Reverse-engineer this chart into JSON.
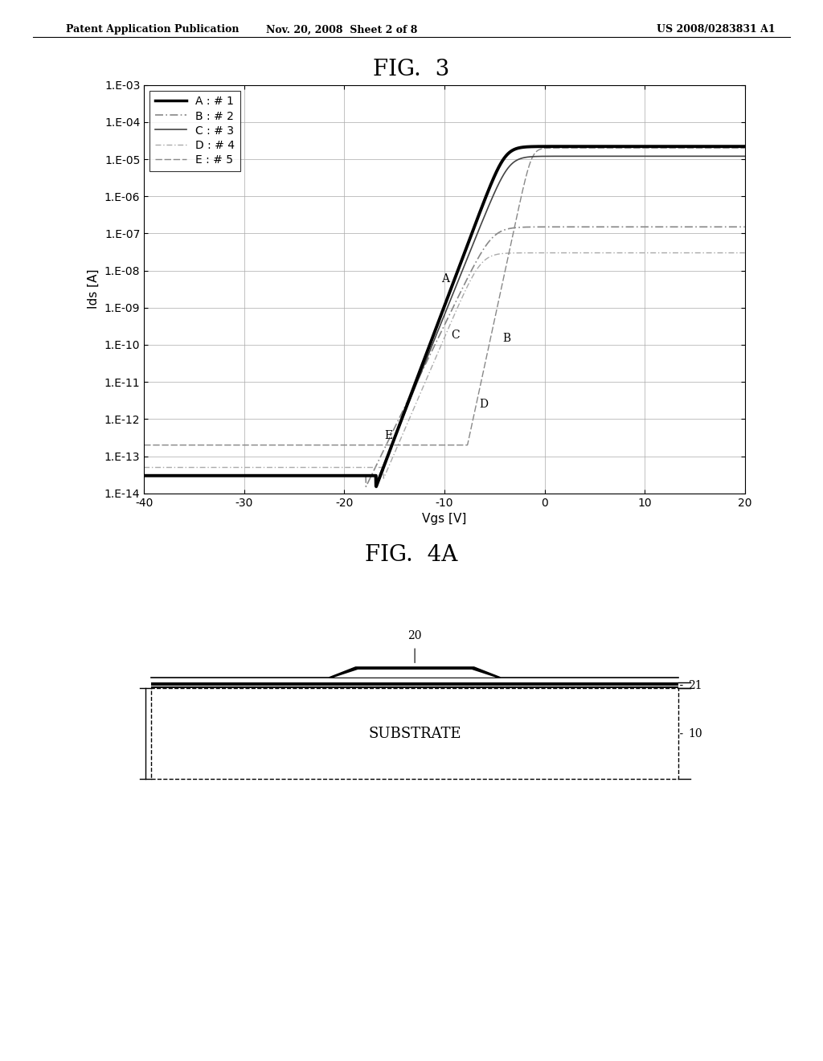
{
  "header_left": "Patent Application Publication",
  "header_mid": "Nov. 20, 2008  Sheet 2 of 8",
  "header_right": "US 2008/0283831 A1",
  "fig3_title": "FIG.  3",
  "fig4a_title": "FIG.  4A",
  "xlabel": "Vgs [V]",
  "ylabel": "Ids [A]",
  "xlim": [
    -40,
    20
  ],
  "xticks": [
    -40,
    -30,
    -20,
    -10,
    0,
    10,
    20
  ],
  "ytick_labels": [
    "1.E-03",
    "1.E-04",
    "1.E-05",
    "1.E-06",
    "1.E-07",
    "1.E-08",
    "1.E-09",
    "1.E-10",
    "1.E-11",
    "1.E-12",
    "1.E-13",
    "1.E-14"
  ],
  "legend_labels": [
    "A : # 1",
    "B : # 2",
    "C : # 3",
    "D : # 4",
    "E : # 5"
  ],
  "background_color": "#ffffff",
  "substrate_label": "SUBSTRATE",
  "label_20": "20",
  "label_21": "21",
  "label_10": "10"
}
